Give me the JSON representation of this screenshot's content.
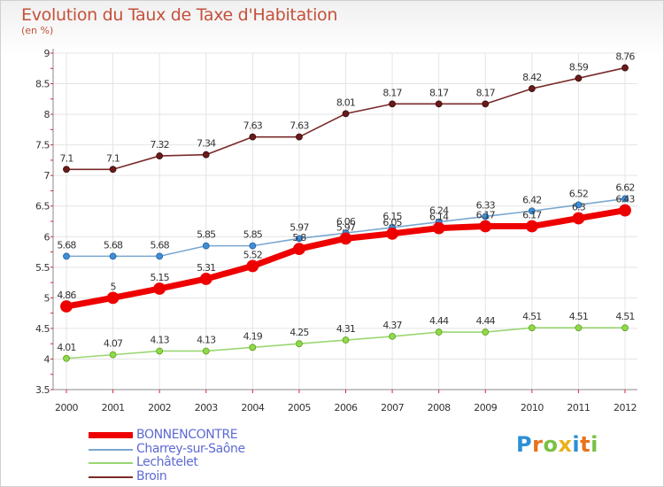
{
  "title": "Evolution du Taux de Taxe d'Habitation",
  "unit_label": "(en %)",
  "logo": {
    "letters": [
      "P",
      "r",
      "o",
      "x",
      "i",
      "t",
      "i"
    ],
    "colors": [
      "#2b8fd6",
      "#e8731c",
      "#7ac143",
      "#e8b21c",
      "#2b8fd6",
      "#e8731c",
      "#7ac143"
    ]
  },
  "chart_data": {
    "type": "line",
    "title": "Evolution du Taux de Taxe d'Habitation",
    "ylabel": "(en %)",
    "x": [
      "2000",
      "2001",
      "2002",
      "2003",
      "2004",
      "2005",
      "2006",
      "2007",
      "2008",
      "2009",
      "2010",
      "2011",
      "2012"
    ],
    "ylim": [
      3.5,
      9
    ],
    "yticks": [
      "3.5",
      "4",
      "4.5",
      "5",
      "5.5",
      "6",
      "6.5",
      "7",
      "7.5",
      "8",
      "8.5",
      "9"
    ],
    "grid": true,
    "legend_position": "bottom-left",
    "series": [
      {
        "name": "Broin",
        "color": "#7a2a2a",
        "values": [
          7.1,
          7.1,
          7.32,
          7.34,
          7.63,
          7.63,
          8.01,
          8.17,
          8.17,
          8.17,
          8.42,
          8.59,
          8.76
        ],
        "labels": [
          "7.1",
          "7.1",
          "7.32",
          "7.34",
          "7.63",
          "7.63",
          "8.01",
          "8.17",
          "8.17",
          "8.17",
          "8.42",
          "8.59",
          "8.76"
        ]
      },
      {
        "name": "Charrey-sur-Saône",
        "color": "#7aa7d0",
        "values": [
          5.68,
          5.68,
          5.68,
          5.85,
          5.85,
          5.97,
          6.06,
          6.15,
          6.24,
          6.33,
          6.42,
          6.52,
          6.62
        ],
        "labels": [
          "5.68",
          "5.68",
          "5.68",
          "5.85",
          "5.85",
          "5.97",
          "6.06",
          "6.15",
          "6.24",
          "6.33",
          "6.42",
          "6.52",
          "6.62"
        ]
      },
      {
        "name": "Lechâtelet",
        "color": "#99d773",
        "values": [
          4.01,
          4.07,
          4.13,
          4.13,
          4.19,
          4.25,
          4.31,
          4.37,
          4.44,
          4.44,
          4.51,
          4.51,
          4.51
        ],
        "labels": [
          "4.01",
          "4.07",
          "4.13",
          "4.13",
          "4.19",
          "4.25",
          "4.31",
          "4.37",
          "4.44",
          "4.44",
          "4.51",
          "4.51",
          "4.51"
        ]
      },
      {
        "name": "BONNENCONTRE",
        "color": "#ee0000",
        "values": [
          4.86,
          5.0,
          5.15,
          5.31,
          5.52,
          5.8,
          5.97,
          6.05,
          6.14,
          6.17,
          6.17,
          6.3,
          6.43
        ],
        "labels": [
          "4.86",
          "5",
          "5.15",
          "5.31",
          "5.52",
          "5.8",
          "5.97",
          "6.05",
          "6.14",
          "6.17",
          "6.17",
          "6.3",
          "6.43"
        ]
      }
    ],
    "legend": [
      "BONNENCONTRE",
      "Charrey-sur-Saône",
      "Lechâtelet",
      "Broin"
    ]
  }
}
